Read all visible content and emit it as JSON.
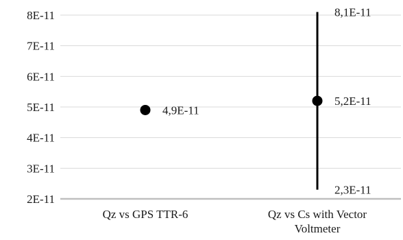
{
  "chart_data": {
    "type": "scatter",
    "title": "",
    "xlabel": "",
    "ylabel": "",
    "ylim": [
      2e-11,
      8e-11
    ],
    "y_ticks": [
      {
        "value": 2e-11,
        "label": "2E-11"
      },
      {
        "value": 3e-11,
        "label": "3E-11"
      },
      {
        "value": 4e-11,
        "label": "4E-11"
      },
      {
        "value": 5e-11,
        "label": "5E-11"
      },
      {
        "value": 6e-11,
        "label": "6E-11"
      },
      {
        "value": 7e-11,
        "label": "7E-11"
      },
      {
        "value": 8e-11,
        "label": "8E-11"
      }
    ],
    "grid": true,
    "legend": "none",
    "categories": [
      [
        "Qz vs GPS TTR-6"
      ],
      [
        "Qz vs Cs with Vector",
        "Voltmeter"
      ]
    ],
    "points": [
      {
        "value": 4.9e-11,
        "label": "4,9E-11",
        "error_low": null,
        "error_high": null
      },
      {
        "value": 5.2e-11,
        "label": "5,2E-11",
        "error_low": 2.3e-11,
        "error_high": 8.1e-11,
        "low_label": "2,3E-11",
        "high_label": "8,1E-11"
      }
    ],
    "colors": {
      "marker": "#000000",
      "grid": "#d9d9d9",
      "axis": "#bfbfbf",
      "text": "#1a1a1a"
    }
  }
}
